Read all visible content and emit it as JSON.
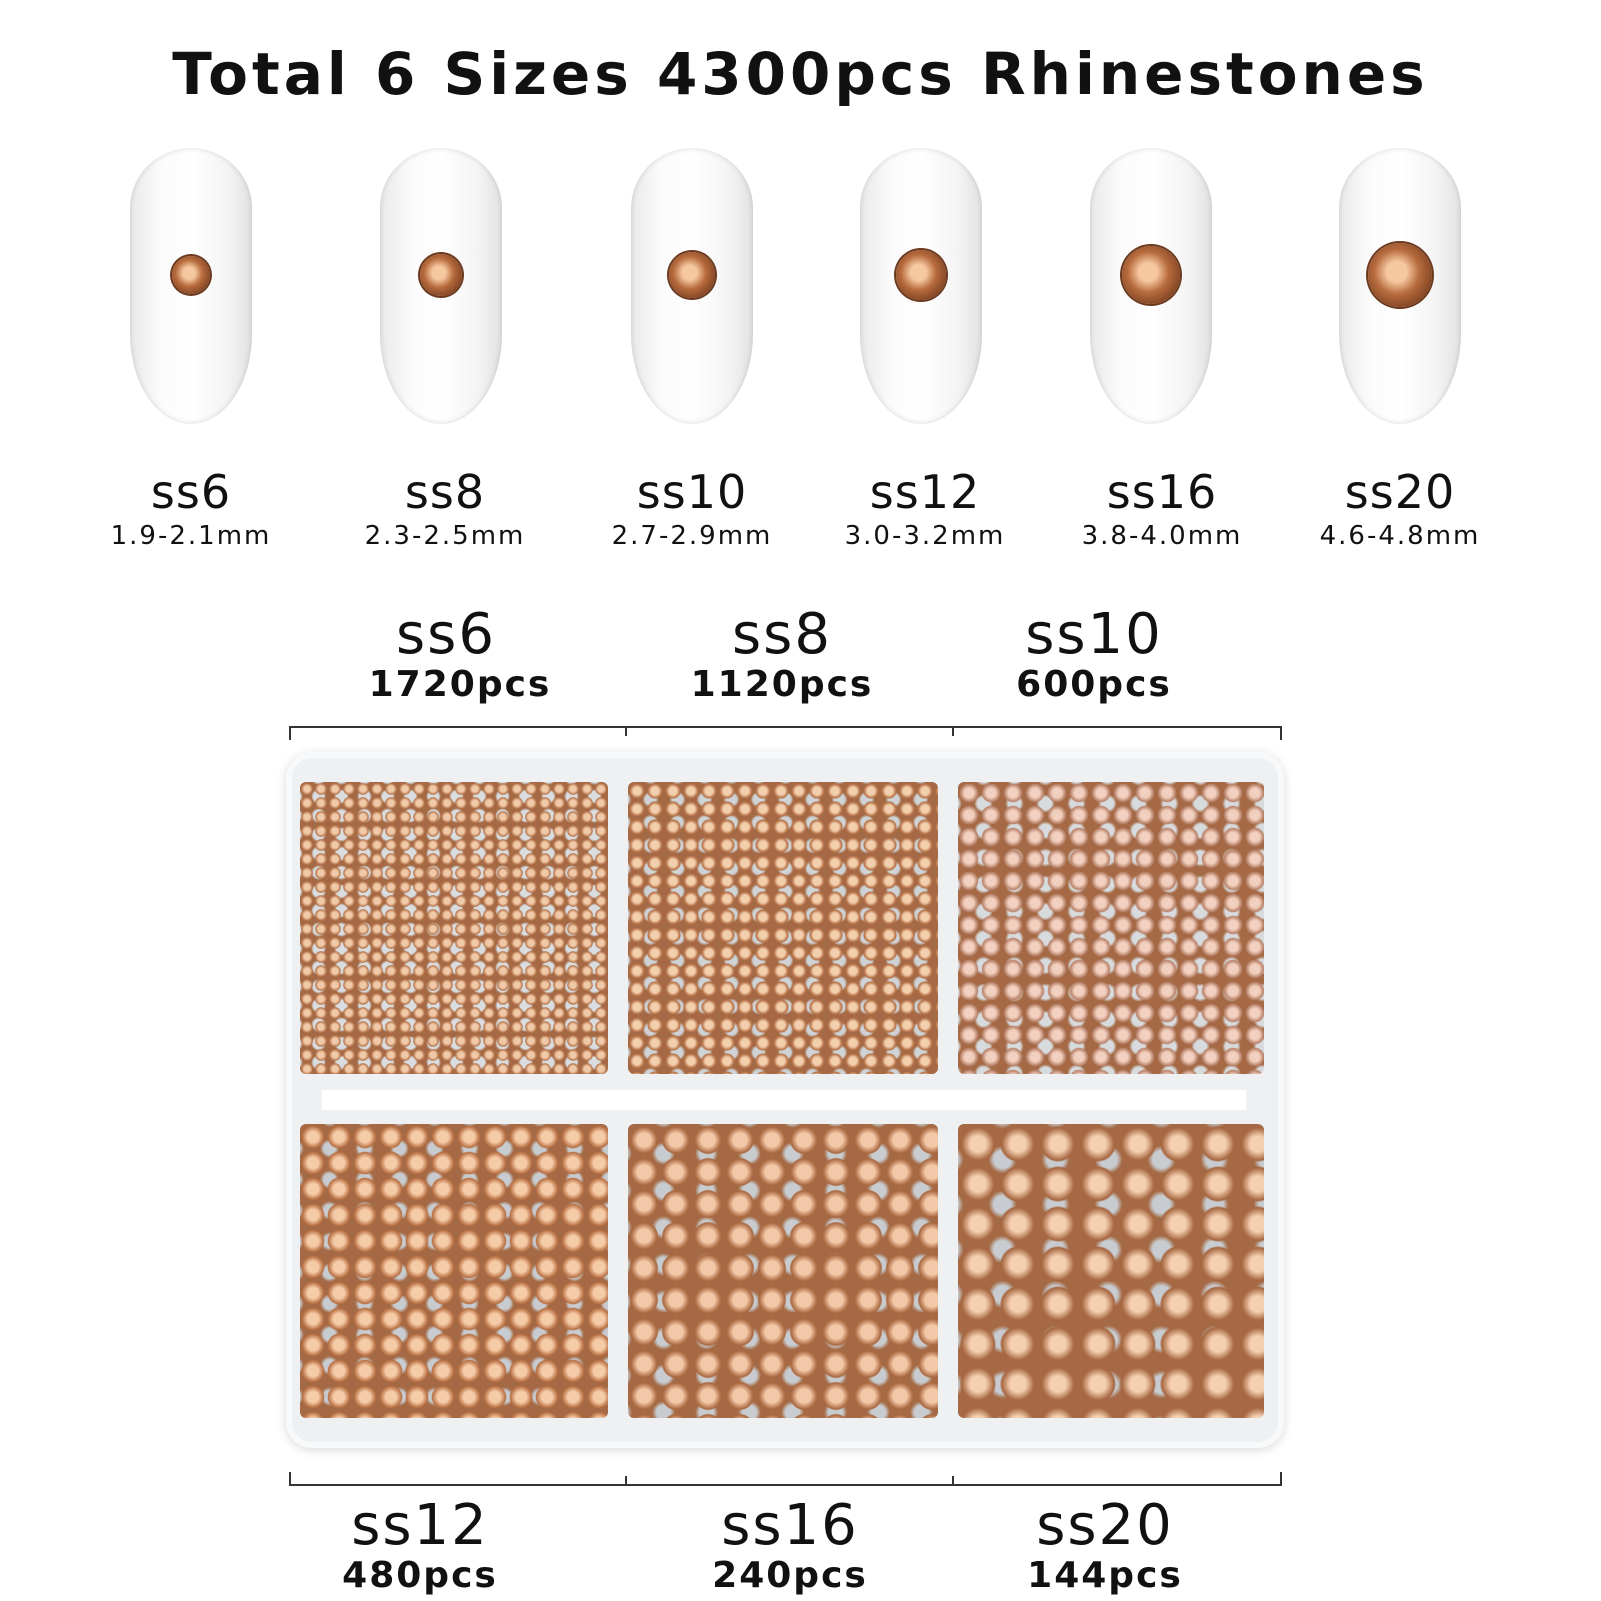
{
  "title": "Total 6 Sizes 4300pcs Rhinestones",
  "gem_color": "#b86c3e",
  "sizes": [
    {
      "name": "ss6",
      "mm": "1.9-2.1mm"
    },
    {
      "name": "ss8",
      "mm": "2.3-2.5mm"
    },
    {
      "name": "ss10",
      "mm": "2.7-2.9mm"
    },
    {
      "name": "ss12",
      "mm": "3.0-3.2mm"
    },
    {
      "name": "ss16",
      "mm": "3.8-4.0mm"
    },
    {
      "name": "ss20",
      "mm": "4.6-4.8mm"
    }
  ],
  "counts": [
    {
      "name": "ss6",
      "pcs": "1720pcs"
    },
    {
      "name": "ss8",
      "pcs": "1120pcs"
    },
    {
      "name": "ss10",
      "pcs": "600pcs"
    },
    {
      "name": "ss12",
      "pcs": "480pcs"
    },
    {
      "name": "ss16",
      "pcs": "240pcs"
    },
    {
      "name": "ss20",
      "pcs": "144pcs"
    }
  ]
}
